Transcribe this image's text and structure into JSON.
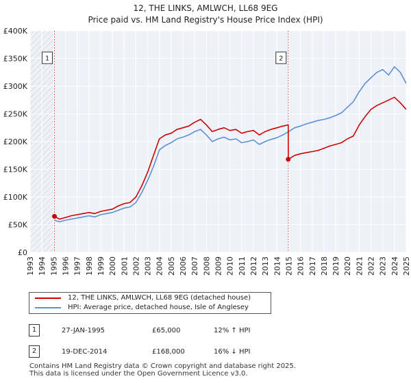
{
  "chart_data": {
    "type": "line",
    "title": "12, THE LINKS, AMLWCH, LL68 9EG",
    "subtitle": "Price paid vs. HM Land Registry's House Price Index (HPI)",
    "xlabel": "",
    "ylabel": "",
    "xlim": [
      1993,
      2025
    ],
    "ylim": [
      0,
      400000
    ],
    "x_ticks": [
      "1993",
      "1994",
      "1995",
      "1996",
      "1997",
      "1998",
      "1999",
      "2000",
      "2001",
      "2002",
      "2003",
      "2004",
      "2005",
      "2006",
      "2007",
      "2008",
      "2009",
      "2010",
      "2011",
      "2012",
      "2013",
      "2014",
      "2015",
      "2016",
      "2017",
      "2018",
      "2019",
      "2020",
      "2021",
      "2022",
      "2023",
      "2024",
      "2025"
    ],
    "y_ticks": [
      {
        "value": 0,
        "label": "£0"
      },
      {
        "value": 50000,
        "label": "£50K"
      },
      {
        "value": 100000,
        "label": "£100K"
      },
      {
        "value": 150000,
        "label": "£150K"
      },
      {
        "value": 200000,
        "label": "£200K"
      },
      {
        "value": 250000,
        "label": "£250K"
      },
      {
        "value": 300000,
        "label": "£300K"
      },
      {
        "value": 350000,
        "label": "£350K"
      },
      {
        "value": 400000,
        "label": "£400K"
      }
    ],
    "grid": true,
    "hatched_before": 1995.07,
    "series": [
      {
        "name": "12, THE LINKS, AMLWCH, LL68 9EG (detached house)",
        "color": "#cc0000",
        "x": [
          1995.07,
          1995.5,
          1996,
          1996.5,
          1997,
          1997.5,
          1998,
          1998.5,
          1999,
          1999.5,
          2000,
          2000.5,
          2001,
          2001.5,
          2002,
          2002.5,
          2003,
          2003.5,
          2004,
          2004.5,
          2005,
          2005.5,
          2006,
          2006.5,
          2007,
          2007.5,
          2008,
          2008.5,
          2009,
          2009.5,
          2010,
          2010.5,
          2011,
          2011.5,
          2012,
          2012.5,
          2013,
          2013.5,
          2014,
          2014.5,
          2014.96,
          2014.97,
          2015.5,
          2016,
          2016.5,
          2017,
          2017.5,
          2018,
          2018.5,
          2019,
          2019.5,
          2020,
          2020.5,
          2021,
          2021.5,
          2022,
          2022.5,
          2023,
          2023.5,
          2024,
          2024.5,
          2025
        ],
        "y": [
          65000,
          60000,
          63000,
          66000,
          68000,
          70000,
          72000,
          70000,
          74000,
          76000,
          78000,
          84000,
          88000,
          90000,
          100000,
          120000,
          145000,
          175000,
          205000,
          212000,
          215000,
          222000,
          225000,
          228000,
          235000,
          240000,
          230000,
          218000,
          222000,
          225000,
          220000,
          222000,
          215000,
          218000,
          220000,
          212000,
          218000,
          222000,
          225000,
          228000,
          230000,
          168000,
          175000,
          178000,
          180000,
          182000,
          184000,
          188000,
          192000,
          195000,
          198000,
          205000,
          210000,
          230000,
          245000,
          258000,
          265000,
          270000,
          275000,
          280000,
          270000,
          258000
        ]
      },
      {
        "name": "HPI: Average price, detached house, Isle of Anglesey",
        "color": "#5b8fd6",
        "x": [
          1995.07,
          1995.5,
          1996,
          1996.5,
          1997,
          1997.5,
          1998,
          1998.5,
          1999,
          1999.5,
          2000,
          2000.5,
          2001,
          2001.5,
          2002,
          2002.5,
          2003,
          2003.5,
          2004,
          2004.5,
          2005,
          2005.5,
          2006,
          2006.5,
          2007,
          2007.5,
          2008,
          2008.5,
          2009,
          2009.5,
          2010,
          2010.5,
          2011,
          2011.5,
          2012,
          2012.5,
          2013,
          2013.5,
          2014,
          2014.5,
          2015,
          2015.5,
          2016,
          2016.5,
          2017,
          2017.5,
          2018,
          2018.5,
          2019,
          2019.5,
          2020,
          2020.5,
          2021,
          2021.5,
          2022,
          2022.5,
          2023,
          2023.5,
          2024,
          2024.5,
          2025
        ],
        "y": [
          58000,
          55000,
          58000,
          60000,
          62000,
          64000,
          66000,
          64000,
          68000,
          70000,
          72000,
          76000,
          80000,
          82000,
          90000,
          108000,
          130000,
          155000,
          185000,
          193000,
          198000,
          205000,
          208000,
          212000,
          218000,
          222000,
          212000,
          200000,
          205000,
          208000,
          203000,
          205000,
          198000,
          200000,
          203000,
          195000,
          200000,
          204000,
          207000,
          212000,
          218000,
          225000,
          228000,
          232000,
          235000,
          238000,
          240000,
          243000,
          247000,
          252000,
          262000,
          272000,
          290000,
          305000,
          315000,
          325000,
          330000,
          320000,
          335000,
          325000,
          305000
        ]
      }
    ],
    "markers": [
      {
        "id": "1",
        "x": 1995.07,
        "y": 65000
      },
      {
        "id": "2",
        "x": 2014.96,
        "y": 168000
      }
    ]
  },
  "legend": {
    "items": [
      {
        "label": "12, THE LINKS, AMLWCH, LL68 9EG (detached house)"
      },
      {
        "label": "HPI: Average price, detached house, Isle of Anglesey"
      }
    ]
  },
  "sales": [
    {
      "id": "1",
      "date": "27-JAN-1995",
      "price": "£65,000",
      "hpi": "12% ↑ HPI"
    },
    {
      "id": "2",
      "date": "19-DEC-2014",
      "price": "£168,000",
      "hpi": "16% ↓ HPI"
    }
  ],
  "footer": {
    "line1": "Contains HM Land Registry data © Crown copyright and database right 2025.",
    "line2": "This data is licensed under the Open Government Licence v3.0."
  }
}
